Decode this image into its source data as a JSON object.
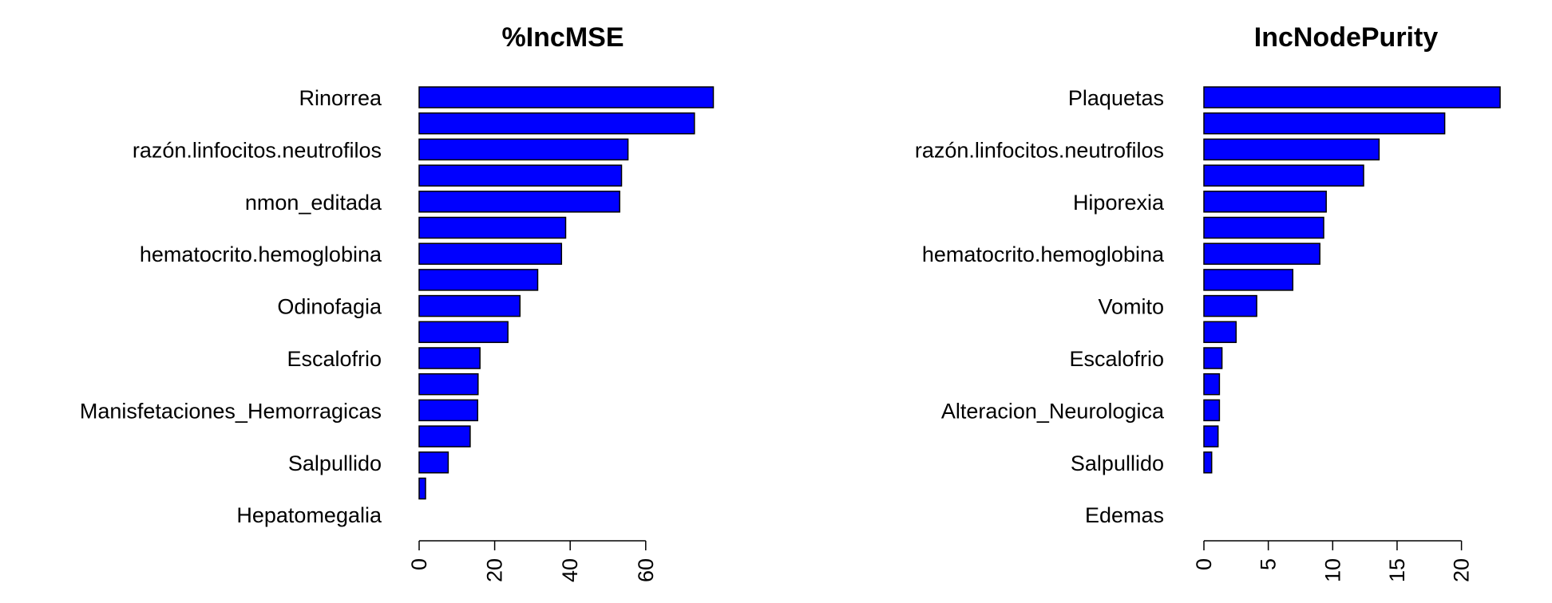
{
  "chart_data": [
    {
      "type": "bar",
      "orientation": "horizontal",
      "title": "%IncMSE",
      "xlabel": "",
      "ylabel": "",
      "xlim": [
        0,
        78
      ],
      "x_ticks": [
        0,
        20,
        40,
        60
      ],
      "tick_labels": [
        "0",
        "20",
        "40",
        "60"
      ],
      "bar_color": "#0000ff",
      "categories": [
        "Rinorrea",
        "",
        "razón.linfocitos.neutrofilos",
        "",
        "nmon_editada",
        "",
        "hematocrito.hemoglobina",
        "",
        "Odinofagia",
        "",
        "Escalofrio",
        "",
        "Manisfetaciones_Hemorragicas",
        "",
        "Salpullido",
        "",
        "Hepatomegalia"
      ],
      "values": [
        77.9,
        72.9,
        55.3,
        53.6,
        53.1,
        38.8,
        37.7,
        31.4,
        26.7,
        23.5,
        16.1,
        15.6,
        15.5,
        13.5,
        7.7,
        1.7,
        0.0
      ]
    },
    {
      "type": "bar",
      "orientation": "horizontal",
      "title": "IncNodePurity",
      "xlabel": "",
      "ylabel": "",
      "xlim": [
        0,
        23
      ],
      "x_ticks": [
        0,
        5,
        10,
        15,
        20
      ],
      "tick_labels": [
        "0",
        "5",
        "10",
        "15",
        "20"
      ],
      "bar_color": "#0000ff",
      "categories": [
        "Plaquetas",
        "",
        "razón.linfocitos.neutrofilos",
        "",
        "Hiporexia",
        "",
        "hematocrito.hemoglobina",
        "",
        "Vomito",
        "",
        "Escalofrio",
        "",
        "Alteracion_Neurologica",
        "",
        "Salpullido",
        "",
        "Edemas"
      ],
      "values": [
        23.0,
        18.7,
        13.6,
        12.4,
        9.5,
        9.3,
        9.0,
        6.9,
        4.1,
        2.5,
        1.4,
        1.2,
        1.2,
        1.1,
        0.6,
        0.0,
        0.0
      ]
    }
  ]
}
